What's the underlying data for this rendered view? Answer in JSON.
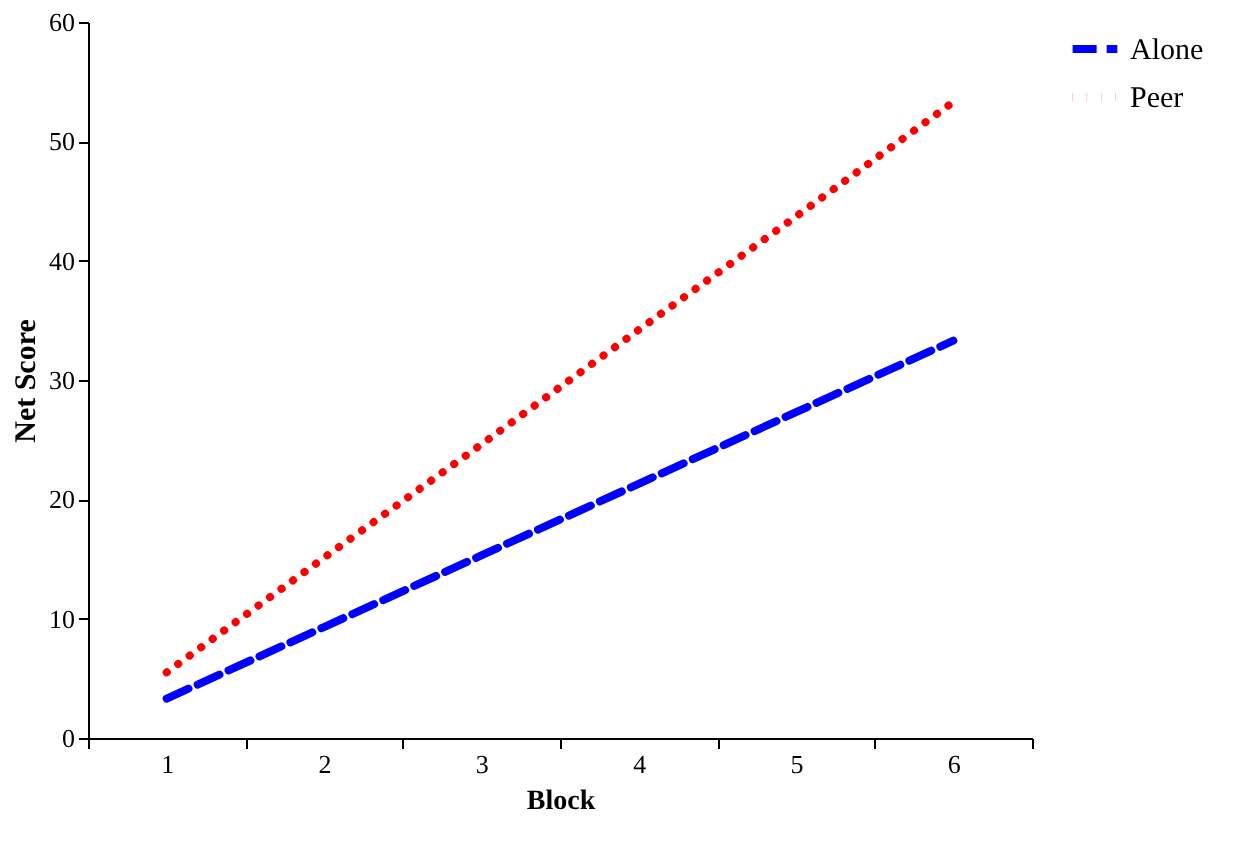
{
  "chart_data": {
    "type": "line",
    "xlabel": "Block",
    "ylabel": "Net Score",
    "categories": [
      "1",
      "2",
      "3",
      "4",
      "5",
      "6"
    ],
    "series": [
      {
        "name": "Alone",
        "color": "#0000ff",
        "line_style": "dashed",
        "values": [
          3.3,
          9.3,
          15.3,
          21.3,
          27.3,
          33.3
        ]
      },
      {
        "name": "Peer",
        "color": "#ff0000",
        "line_style": "dotted",
        "values": [
          5.5,
          15.1,
          24.6,
          34.2,
          43.7,
          53.3
        ]
      }
    ],
    "ylim": [
      0,
      60
    ],
    "yticks": [
      0,
      10,
      20,
      30,
      40,
      50,
      60
    ],
    "grid": false,
    "legend": "right",
    "marker": "none"
  }
}
